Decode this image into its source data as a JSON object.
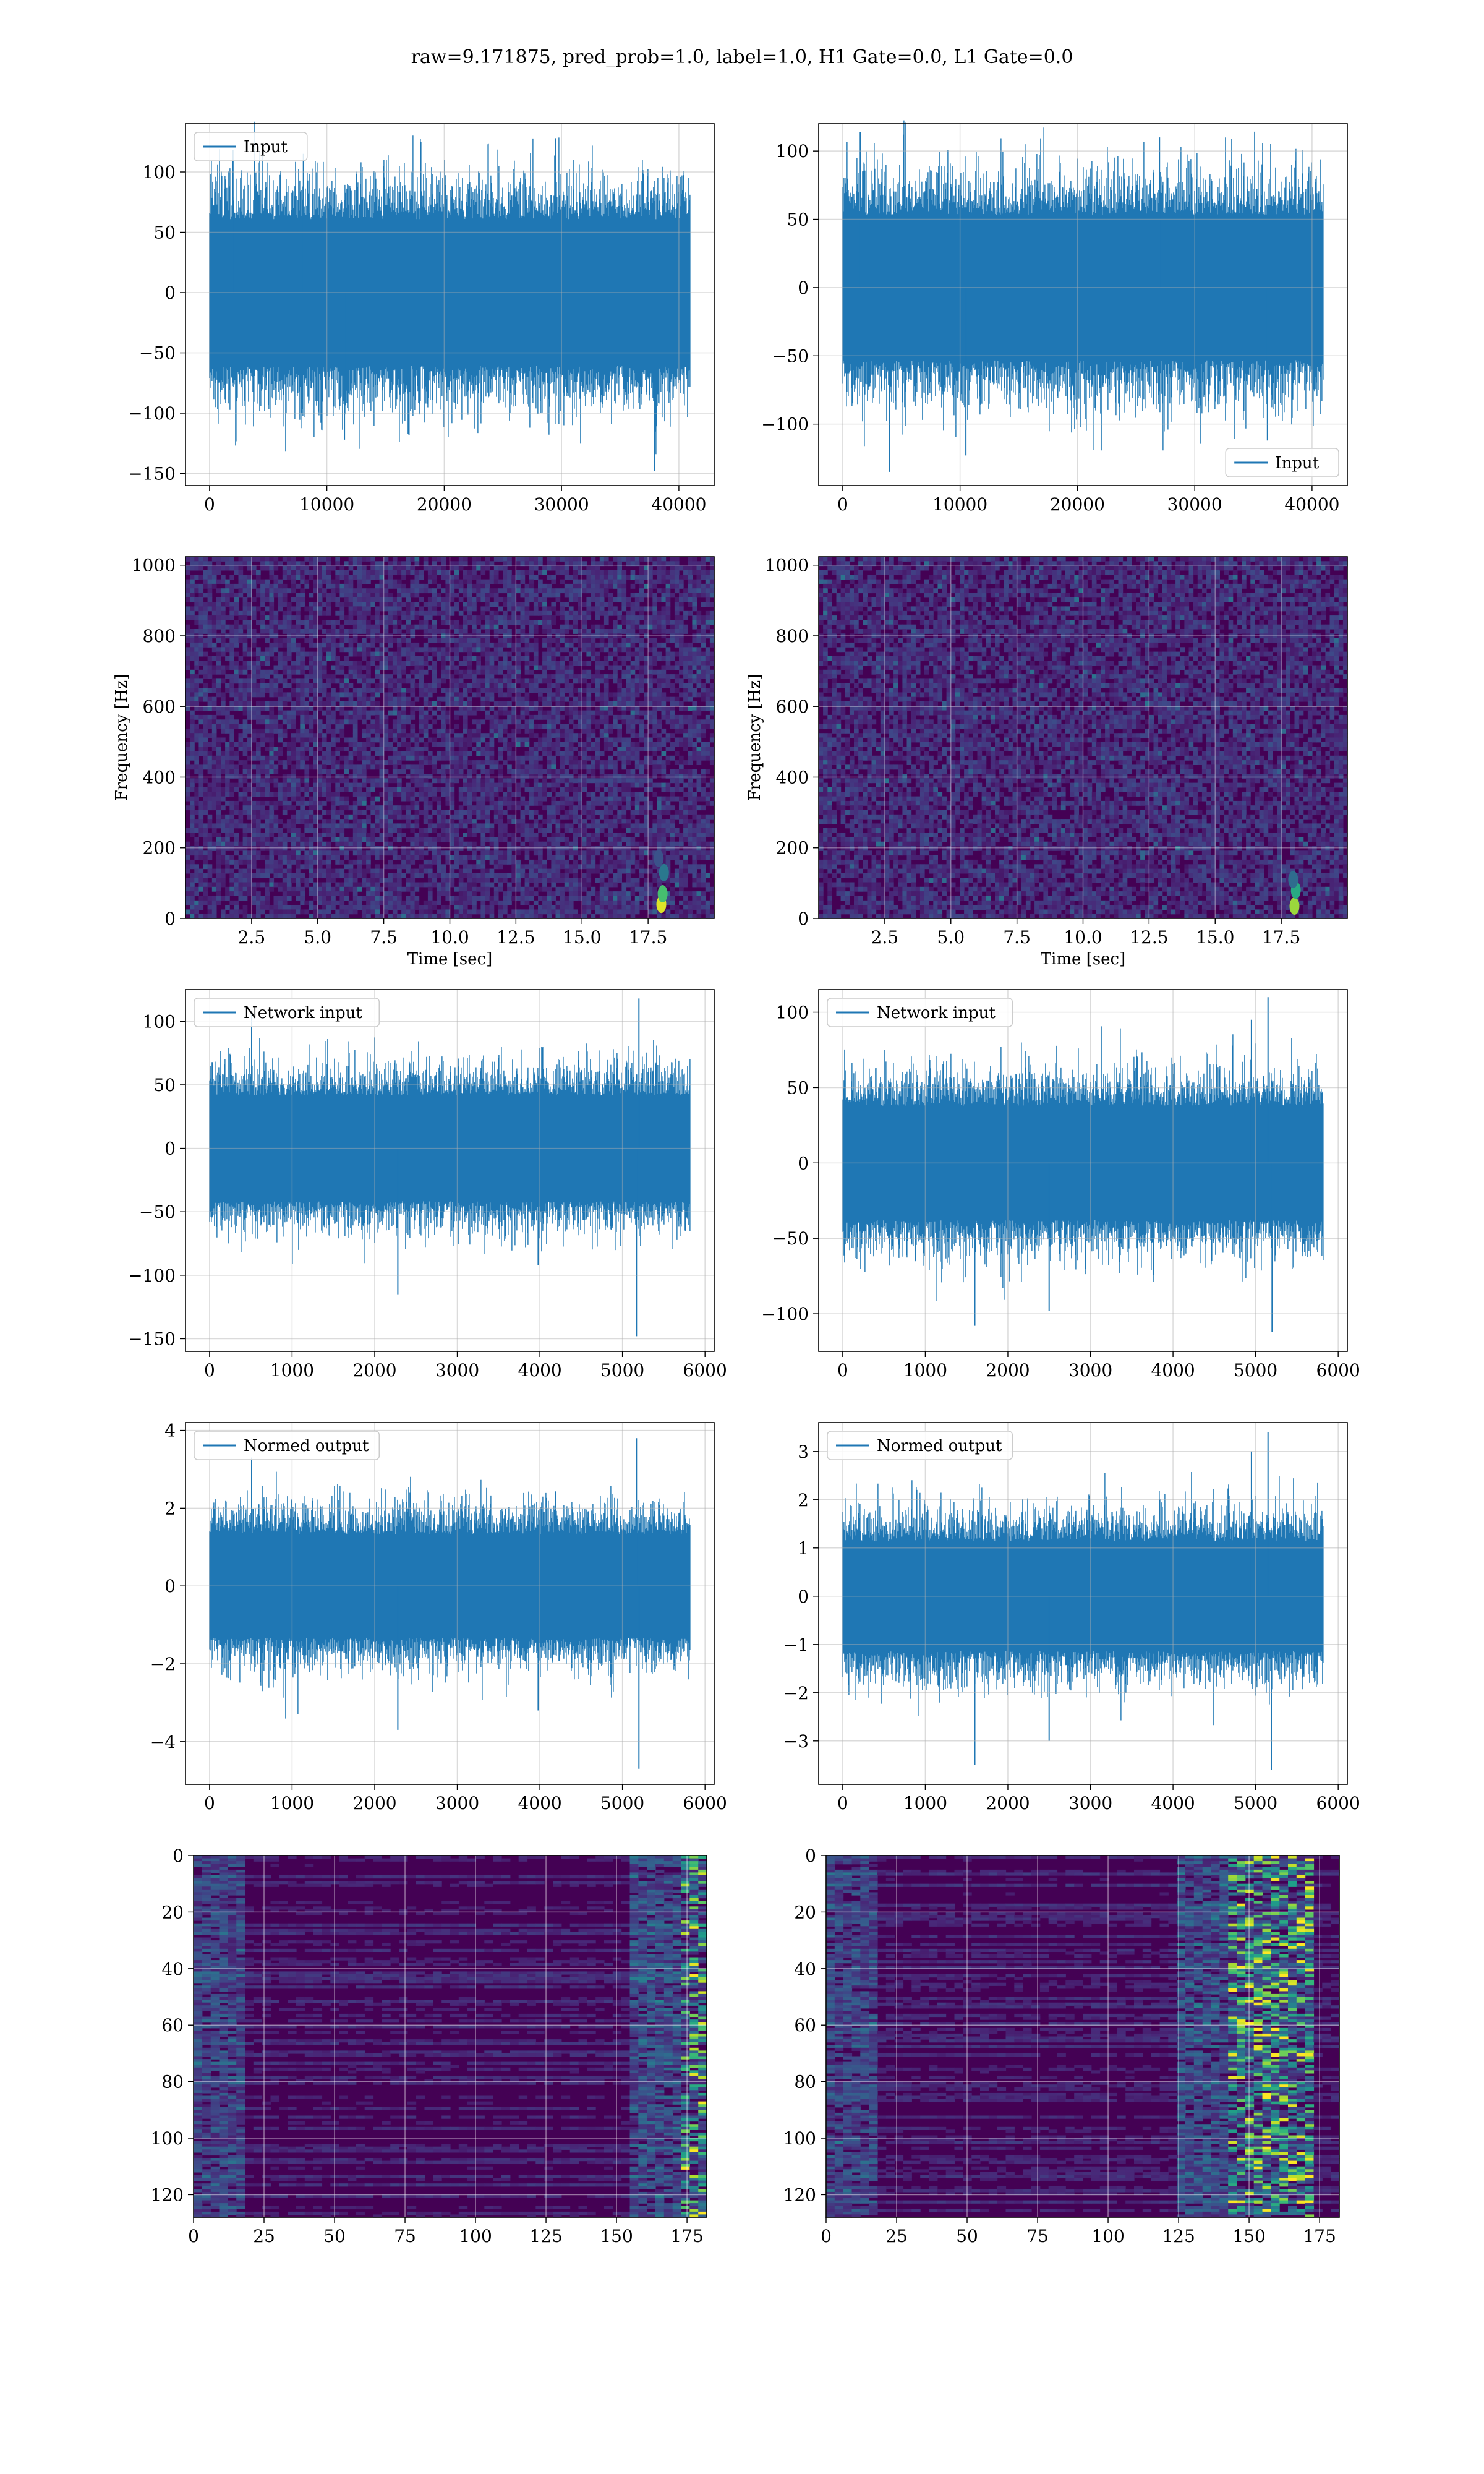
{
  "figure": {
    "title": "raw=9.171875, pred_prob=1.0, label=1.0, H1 Gate=0.0, L1 Gate=0.0"
  },
  "colors": {
    "line": "#1f77b4",
    "grid": "#b0b0b0",
    "spectrogram_bg": "#440154",
    "spectrogram_mid": "#3b528b",
    "hot": "#fde725"
  },
  "chart_data": [
    {
      "id": "h1-input",
      "type": "line",
      "series": [
        {
          "name": "Input",
          "n": 40960,
          "amp": 32,
          "spread": 42,
          "extremes": [
            [
              2000,
              118
            ],
            [
              11500,
              -122
            ],
            [
              29500,
              128
            ],
            [
              37900,
              -148
            ],
            [
              17000,
              -118
            ],
            [
              8000,
              115
            ]
          ]
        }
      ],
      "xlim": [
        -2048,
        43008
      ],
      "ylim": [
        -160,
        140
      ],
      "xticks": [
        0,
        10000,
        20000,
        30000,
        40000
      ],
      "xtick_labels": [
        "0",
        "10000",
        "20000",
        "30000",
        "40000"
      ],
      "yticks": [
        100,
        50,
        0,
        -50,
        -100,
        -150
      ],
      "ytick_labels": [
        "100",
        "50",
        "0",
        "−50",
        "−100",
        "−150"
      ],
      "legend": {
        "loc": "upper left"
      },
      "grid": true,
      "xlabel": "",
      "ylabel": ""
    },
    {
      "id": "l1-input",
      "type": "line",
      "series": [
        {
          "name": "Input",
          "n": 40960,
          "amp": 28,
          "spread": 38,
          "extremes": [
            [
              4000,
              -135
            ],
            [
              10500,
              -123
            ],
            [
              27000,
              110
            ],
            [
              36200,
              -112
            ],
            [
              1500,
              114
            ]
          ]
        }
      ],
      "xlim": [
        -2048,
        43008
      ],
      "ylim": [
        -145,
        120
      ],
      "xticks": [
        0,
        10000,
        20000,
        30000,
        40000
      ],
      "xtick_labels": [
        "0",
        "10000",
        "20000",
        "30000",
        "40000"
      ],
      "yticks": [
        100,
        50,
        0,
        -50,
        -100
      ],
      "ytick_labels": [
        "100",
        "50",
        "0",
        "−50",
        "−100"
      ],
      "legend": {
        "loc": "lower right"
      },
      "grid": true,
      "xlabel": "",
      "ylabel": ""
    },
    {
      "id": "h1-spectrogram",
      "type": "heatmap",
      "xlim": [
        0,
        20
      ],
      "ylim": [
        0,
        1024
      ],
      "xticks": [
        2.5,
        5.0,
        7.5,
        10.0,
        12.5,
        15.0,
        17.5
      ],
      "xtick_labels": [
        "2.5",
        "5.0",
        "7.5",
        "10.0",
        "12.5",
        "15.0",
        "17.5"
      ],
      "yticks": [
        0,
        200,
        400,
        600,
        800,
        1000
      ],
      "ytick_labels": [
        "0",
        "200",
        "400",
        "600",
        "800",
        "1000"
      ],
      "xlabel": "Time [sec]",
      "ylabel": "Frequency [Hz]",
      "grid": true,
      "hotspots": [
        [
          18.0,
          40,
          0.95
        ],
        [
          18.05,
          70,
          0.7
        ],
        [
          18.1,
          130,
          0.4
        ],
        [
          17.9,
          170,
          0.25
        ]
      ]
    },
    {
      "id": "l1-spectrogram",
      "type": "heatmap",
      "xlim": [
        0,
        20
      ],
      "ylim": [
        0,
        1024
      ],
      "xticks": [
        2.5,
        5.0,
        7.5,
        10.0,
        12.5,
        15.0,
        17.5
      ],
      "xtick_labels": [
        "2.5",
        "5.0",
        "7.5",
        "10.0",
        "12.5",
        "15.0",
        "17.5"
      ],
      "yticks": [
        0,
        200,
        400,
        600,
        800,
        1000
      ],
      "ytick_labels": [
        "0",
        "200",
        "400",
        "600",
        "800",
        "1000"
      ],
      "xlabel": "Time [sec]",
      "ylabel": "Frequency [Hz]",
      "grid": true,
      "hotspots": [
        [
          18.0,
          35,
          0.85
        ],
        [
          18.05,
          80,
          0.6
        ],
        [
          17.95,
          110,
          0.35
        ]
      ]
    },
    {
      "id": "h1-network-input",
      "type": "line",
      "series": [
        {
          "name": "Network input",
          "n": 5820,
          "amp": 22,
          "spread": 28,
          "extremes": [
            [
              5200,
              118
            ],
            [
              5170,
              -148
            ],
            [
              2280,
              -115
            ],
            [
              510,
              108
            ],
            [
              3980,
              -92
            ]
          ]
        }
      ],
      "xlim": [
        -291,
        6111
      ],
      "ylim": [
        -160,
        125
      ],
      "xticks": [
        0,
        1000,
        2000,
        3000,
        4000,
        5000,
        6000
      ],
      "xtick_labels": [
        "0",
        "1000",
        "2000",
        "3000",
        "4000",
        "5000",
        "6000"
      ],
      "yticks": [
        100,
        50,
        0,
        -50,
        -100,
        -150
      ],
      "ytick_labels": [
        "100",
        "50",
        "0",
        "−50",
        "−100",
        "−150"
      ],
      "legend": {
        "loc": "upper left"
      },
      "grid": true,
      "xlabel": "",
      "ylabel": ""
    },
    {
      "id": "l1-network-input",
      "type": "line",
      "series": [
        {
          "name": "Network input",
          "n": 5820,
          "amp": 20,
          "spread": 27,
          "extremes": [
            [
              5150,
              110
            ],
            [
              1600,
              -108
            ],
            [
              5200,
              -112
            ],
            [
              4950,
              95
            ],
            [
              2500,
              -98
            ]
          ]
        }
      ],
      "xlim": [
        -291,
        6111
      ],
      "ylim": [
        -125,
        115
      ],
      "xticks": [
        0,
        1000,
        2000,
        3000,
        4000,
        5000,
        6000
      ],
      "xtick_labels": [
        "0",
        "1000",
        "2000",
        "3000",
        "4000",
        "5000",
        "6000"
      ],
      "yticks": [
        100,
        50,
        0,
        -50,
        -100
      ],
      "ytick_labels": [
        "100",
        "50",
        "0",
        "−50",
        "−100"
      ],
      "legend": {
        "loc": "upper left"
      },
      "grid": true,
      "xlabel": "",
      "ylabel": ""
    },
    {
      "id": "h1-normed-output",
      "type": "line",
      "series": [
        {
          "name": "Normed output",
          "n": 5820,
          "amp": 0.7,
          "spread": 0.9,
          "extremes": [
            [
              5170,
              3.8
            ],
            [
              5200,
              -4.7
            ],
            [
              2280,
              -3.7
            ],
            [
              510,
              3.3
            ],
            [
              3980,
              -3.2
            ]
          ]
        }
      ],
      "xlim": [
        -291,
        6111
      ],
      "ylim": [
        -5.1,
        4.2
      ],
      "xticks": [
        0,
        1000,
        2000,
        3000,
        4000,
        5000,
        6000
      ],
      "xtick_labels": [
        "0",
        "1000",
        "2000",
        "3000",
        "4000",
        "5000",
        "6000"
      ],
      "yticks": [
        4,
        2,
        0,
        -2,
        -4
      ],
      "ytick_labels": [
        "4",
        "2",
        "0",
        "−2",
        "−4"
      ],
      "legend": {
        "loc": "upper left"
      },
      "grid": true,
      "xlabel": "",
      "ylabel": ""
    },
    {
      "id": "l1-normed-output",
      "type": "line",
      "series": [
        {
          "name": "Normed output",
          "n": 5820,
          "amp": 0.6,
          "spread": 0.8,
          "extremes": [
            [
              5150,
              3.4
            ],
            [
              5190,
              -3.6
            ],
            [
              1600,
              -3.5
            ],
            [
              2500,
              -3.0
            ],
            [
              4950,
              3.0
            ]
          ]
        }
      ],
      "xlim": [
        -291,
        6111
      ],
      "ylim": [
        -3.9,
        3.6
      ],
      "xticks": [
        0,
        1000,
        2000,
        3000,
        4000,
        5000,
        6000
      ],
      "xtick_labels": [
        "0",
        "1000",
        "2000",
        "3000",
        "4000",
        "5000",
        "6000"
      ],
      "yticks": [
        3,
        2,
        1,
        0,
        -1,
        -2,
        -3
      ],
      "ytick_labels": [
        "3",
        "2",
        "1",
        "0",
        "−1",
        "−2",
        "−3"
      ],
      "legend": {
        "loc": "upper left"
      },
      "grid": true,
      "xlabel": "",
      "ylabel": ""
    },
    {
      "id": "h1-feature-map",
      "type": "heatmap",
      "rows": 128,
      "cols": 182,
      "xlim": [
        0,
        182
      ],
      "ylim": [
        128,
        0
      ],
      "xticks": [
        0,
        25,
        50,
        75,
        100,
        125,
        150,
        175
      ],
      "xtick_labels": [
        "0",
        "25",
        "50",
        "75",
        "100",
        "125",
        "150",
        "175"
      ],
      "yticks": [
        0,
        20,
        40,
        60,
        80,
        100,
        120
      ],
      "ytick_labels": [
        "0",
        "20",
        "40",
        "60",
        "80",
        "100",
        "120"
      ],
      "grid": true,
      "xlabel": "",
      "ylabel": "",
      "hot_cols": [
        170,
        182
      ]
    },
    {
      "id": "l1-feature-map",
      "type": "heatmap",
      "rows": 128,
      "cols": 182,
      "xlim": [
        0,
        182
      ],
      "ylim": [
        128,
        0
      ],
      "xticks": [
        0,
        25,
        50,
        75,
        100,
        125,
        150,
        175
      ],
      "xtick_labels": [
        "0",
        "25",
        "50",
        "75",
        "100",
        "125",
        "150",
        "175"
      ],
      "yticks": [
        0,
        20,
        40,
        60,
        80,
        100,
        120
      ],
      "ytick_labels": [
        "0",
        "20",
        "40",
        "60",
        "80",
        "100",
        "120"
      ],
      "grid": true,
      "xlabel": "",
      "ylabel": "",
      "hot_cols": [
        140,
        170
      ]
    }
  ]
}
